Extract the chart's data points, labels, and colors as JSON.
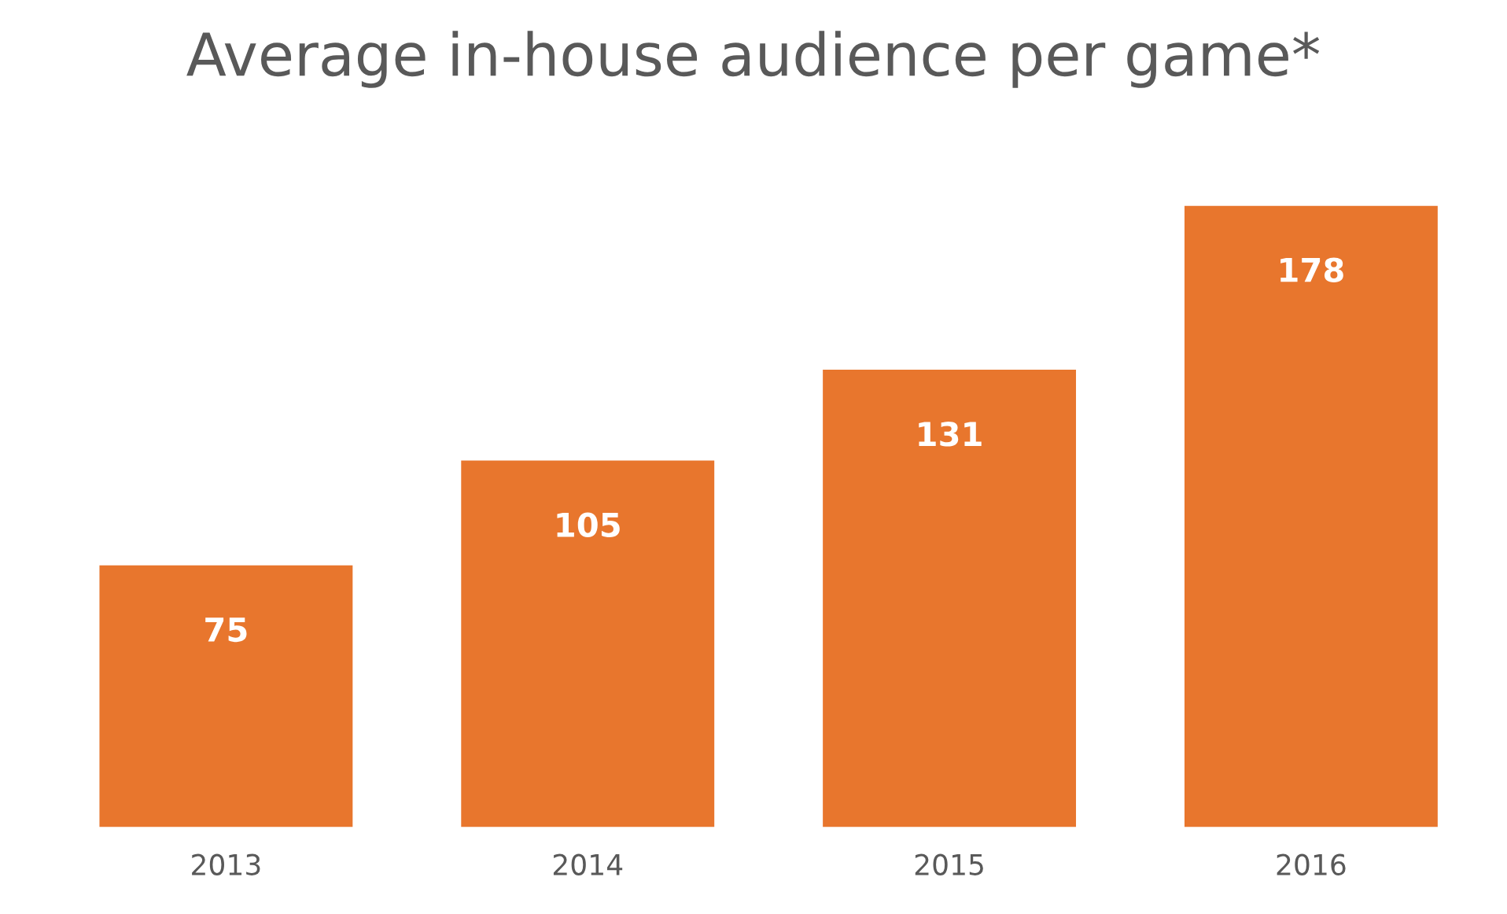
{
  "chart_data": {
    "type": "bar",
    "title": "Average in-house audience per game*",
    "categories": [
      "2013",
      "2014",
      "2015",
      "2016"
    ],
    "values": [
      75,
      105,
      131,
      178
    ],
    "color": "#e8762d",
    "data_labels": true,
    "grid": false,
    "legend": false
  }
}
